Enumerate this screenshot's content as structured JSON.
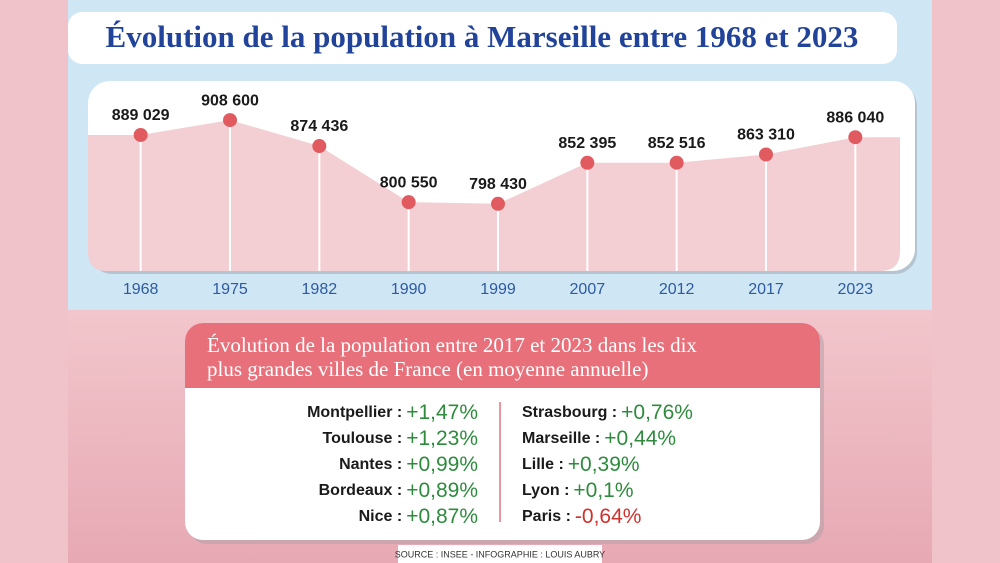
{
  "chart_data": {
    "type": "area",
    "title": "Évolution de la population à Marseille entre 1968 et 2023",
    "categories": [
      "1968",
      "1975",
      "1982",
      "1990",
      "1999",
      "2007",
      "2012",
      "2017",
      "2023"
    ],
    "values": [
      889029,
      908600,
      874436,
      800550,
      798430,
      852395,
      852516,
      863310,
      886040
    ],
    "value_labels": [
      "889 029",
      "908 600",
      "874 436",
      "800 550",
      "798 430",
      "852 395",
      "852 516",
      "863 310",
      "886 040"
    ],
    "ylim": [
      710000,
      960000
    ],
    "color": "#e05a5f",
    "fill": "#f3cfd3"
  },
  "comparison": {
    "title_lines": [
      "Évolution de la population entre 2017 et 2023 dans les dix",
      "plus grandes villes de France (en moyenne annuelle)"
    ],
    "left": [
      {
        "label": "Montpellier :",
        "value": "+1,47%",
        "color": "#2e8b3e"
      },
      {
        "label": "Toulouse :",
        "value": "+1,23%",
        "color": "#2e8b3e"
      },
      {
        "label": "Nantes :",
        "value": "+0,99%",
        "color": "#2e8b3e"
      },
      {
        "label": "Bordeaux :",
        "value": "+0,89%",
        "color": "#2e8b3e"
      },
      {
        "label": "Nice :",
        "value": "+0,87%",
        "color": "#2e8b3e"
      }
    ],
    "right": [
      {
        "label": "Strasbourg :",
        "value": "+0,76%",
        "color": "#2e8b3e"
      },
      {
        "label": "Marseille :",
        "value": "+0,44%",
        "color": "#2e8b3e"
      },
      {
        "label": "Lille :",
        "value": "+0,39%",
        "color": "#2e8b3e"
      },
      {
        "label": "Lyon :",
        "value": "+0,1%",
        "color": "#2e8b3e"
      },
      {
        "label": "Paris :",
        "value": "-0,64%",
        "color": "#d0312d"
      }
    ]
  },
  "source": "SOURCE : INSEE - INFOGRAPHIE : LOUIS AUBRY"
}
